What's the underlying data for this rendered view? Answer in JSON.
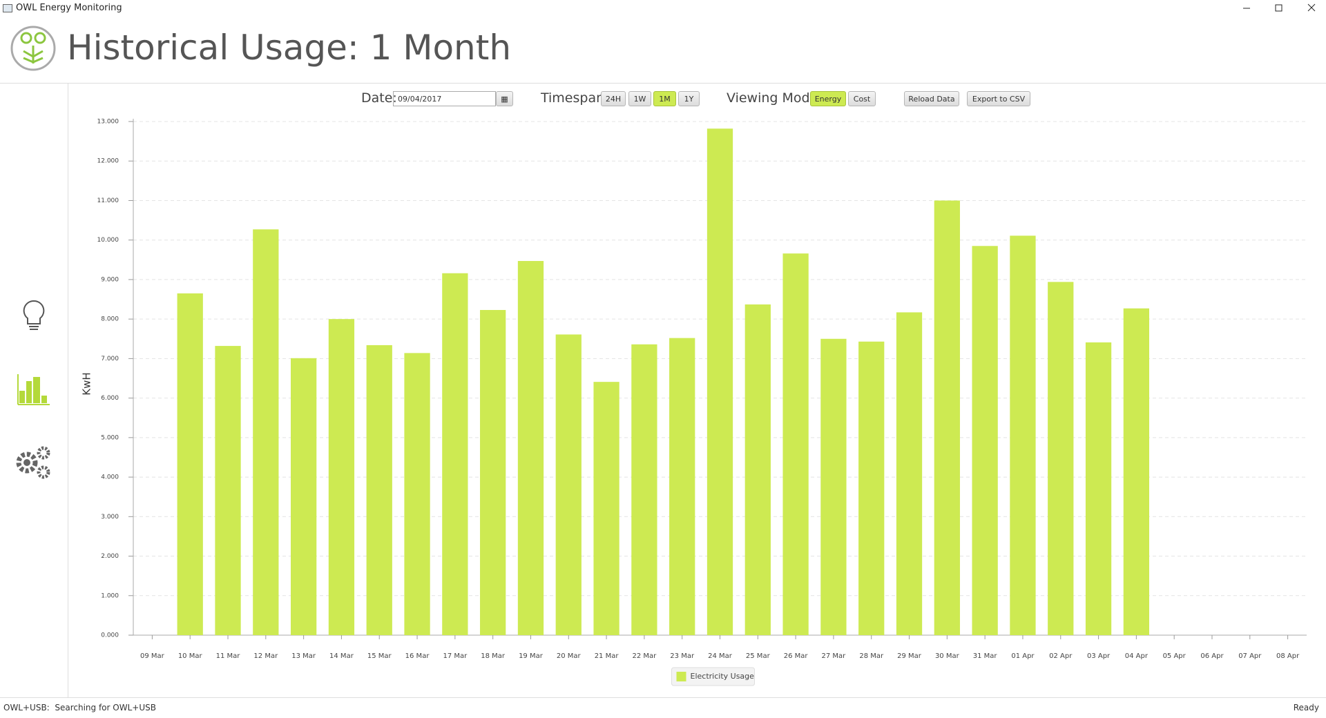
{
  "window_title": "OWL Energy Monitoring",
  "header": {
    "title": "Historical Usage: 1 Month"
  },
  "controls": {
    "date_label": "Date:",
    "date_value": "09/04/2017",
    "timespan_label": "Timespan:",
    "timespan_options": [
      "24H",
      "1W",
      "1M",
      "1Y"
    ],
    "mode_label": "Viewing Mode:",
    "mode_options": [
      "Energy",
      "Cost"
    ],
    "reload": "Reload Data",
    "export": "Export to CSV"
  },
  "chart_data": {
    "type": "bar",
    "ylabel": "KwH",
    "categories": [
      "09 Mar",
      "10 Mar",
      "11 Mar",
      "12 Mar",
      "13 Mar",
      "14 Mar",
      "15 Mar",
      "16 Mar",
      "17 Mar",
      "18 Mar",
      "19 Mar",
      "20 Mar",
      "21 Mar",
      "22 Mar",
      "23 Mar",
      "24 Mar",
      "25 Mar",
      "26 Mar",
      "27 Mar",
      "28 Mar",
      "29 Mar",
      "30 Mar",
      "31 Mar",
      "01 Apr",
      "02 Apr",
      "03 Apr",
      "04 Apr",
      "05 Apr",
      "06 Apr",
      "07 Apr",
      "08 Apr"
    ],
    "series": [
      {
        "name": "Electricity Usage",
        "color": "#cdea52",
        "values": [
          null,
          8.65,
          7.32,
          10.27,
          7.01,
          8.0,
          7.34,
          7.14,
          9.16,
          8.23,
          9.47,
          7.61,
          6.41,
          7.36,
          7.52,
          12.82,
          8.37,
          9.66,
          7.5,
          7.43,
          8.17,
          11.0,
          9.85,
          10.11,
          8.94,
          7.41,
          8.27,
          null,
          null,
          null,
          null
        ]
      }
    ],
    "ylim": [
      0,
      13
    ],
    "yticks": [
      {
        "value": 0,
        "label": "0.000"
      },
      {
        "value": 1,
        "label": "1.000"
      },
      {
        "value": 2,
        "label": "2.000"
      },
      {
        "value": 3,
        "label": "3.000"
      },
      {
        "value": 4,
        "label": "4.000"
      },
      {
        "value": 5,
        "label": "5.000"
      },
      {
        "value": 6,
        "label": "6.000"
      },
      {
        "value": 7,
        "label": "7.000"
      },
      {
        "value": 8,
        "label": "8.000"
      },
      {
        "value": 9,
        "label": "9.000"
      },
      {
        "value": 10,
        "label": "10.000"
      },
      {
        "value": 11,
        "label": "11.000"
      },
      {
        "value": 12,
        "label": "12.000"
      },
      {
        "value": 13,
        "label": "13.000"
      }
    ],
    "grid": true,
    "legend": "bottom"
  },
  "status": {
    "left": "OWL+USB:  Searching for OWL+USB",
    "right": "Ready"
  }
}
